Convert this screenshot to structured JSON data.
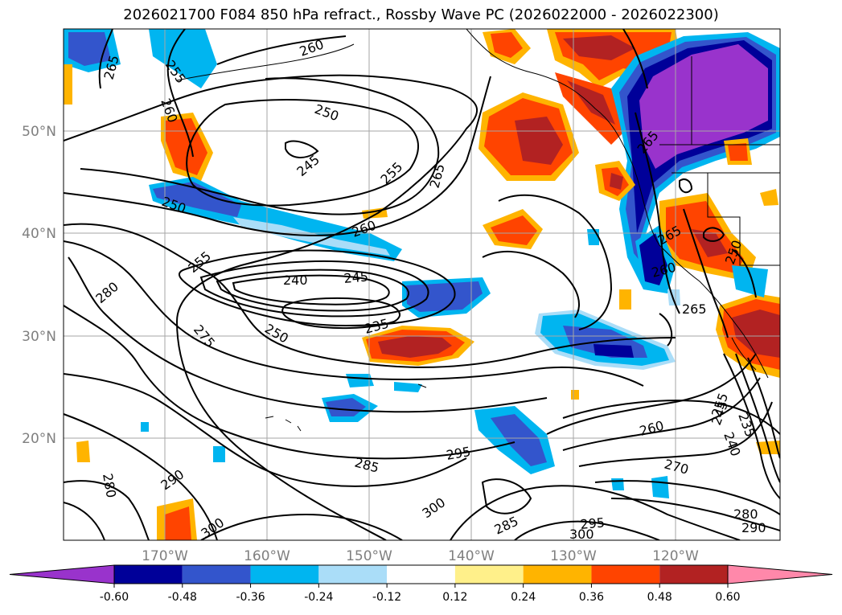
{
  "title": "2026021700 F084 850 hPa refract., Rossby Wave PC (2026022000 - 2026022300)",
  "latitude_labels": [
    "50°N",
    "40°N",
    "30°N",
    "20°N"
  ],
  "longitude_labels": [
    "170°W",
    "160°W",
    "150°W",
    "140°W",
    "130°W",
    "120°W"
  ],
  "contour_labels": [
    "265",
    "255",
    "260",
    "260",
    "250",
    "245",
    "255",
    "265",
    "250",
    "260",
    "255",
    "280",
    "240",
    "245",
    "275",
    "250",
    "235",
    "260",
    "295",
    "285",
    "290",
    "280",
    "300",
    "300",
    "285",
    "295",
    "300",
    "270",
    "255",
    "245",
    "240",
    "235",
    "280",
    "290",
    "265",
    "260",
    "265",
    "265",
    "250"
  ],
  "colorbar": {
    "ticks": [
      "-0.60",
      "-0.48",
      "-0.36",
      "-0.24",
      "-0.12",
      "0.12",
      "0.24",
      "0.36",
      "0.48",
      "0.60"
    ],
    "colors": [
      "#9933cc",
      "#000099",
      "#3355cc",
      "#00b5f0",
      "#aaddf8",
      "#ffffff",
      "#fff08a",
      "#ffb400",
      "#ff4400",
      "#b22222",
      "#ff88aa"
    ]
  },
  "palette": {
    "purple": "#9933cc",
    "navy": "#000099",
    "blue": "#3355cc",
    "cyan": "#00b5f0",
    "lightblue": "#aaddf8",
    "yellow": "#fff08a",
    "orange": "#ffb400",
    "red_orange": "#ff4400",
    "dark_red": "#b22222",
    "pink": "#ff88aa"
  }
}
